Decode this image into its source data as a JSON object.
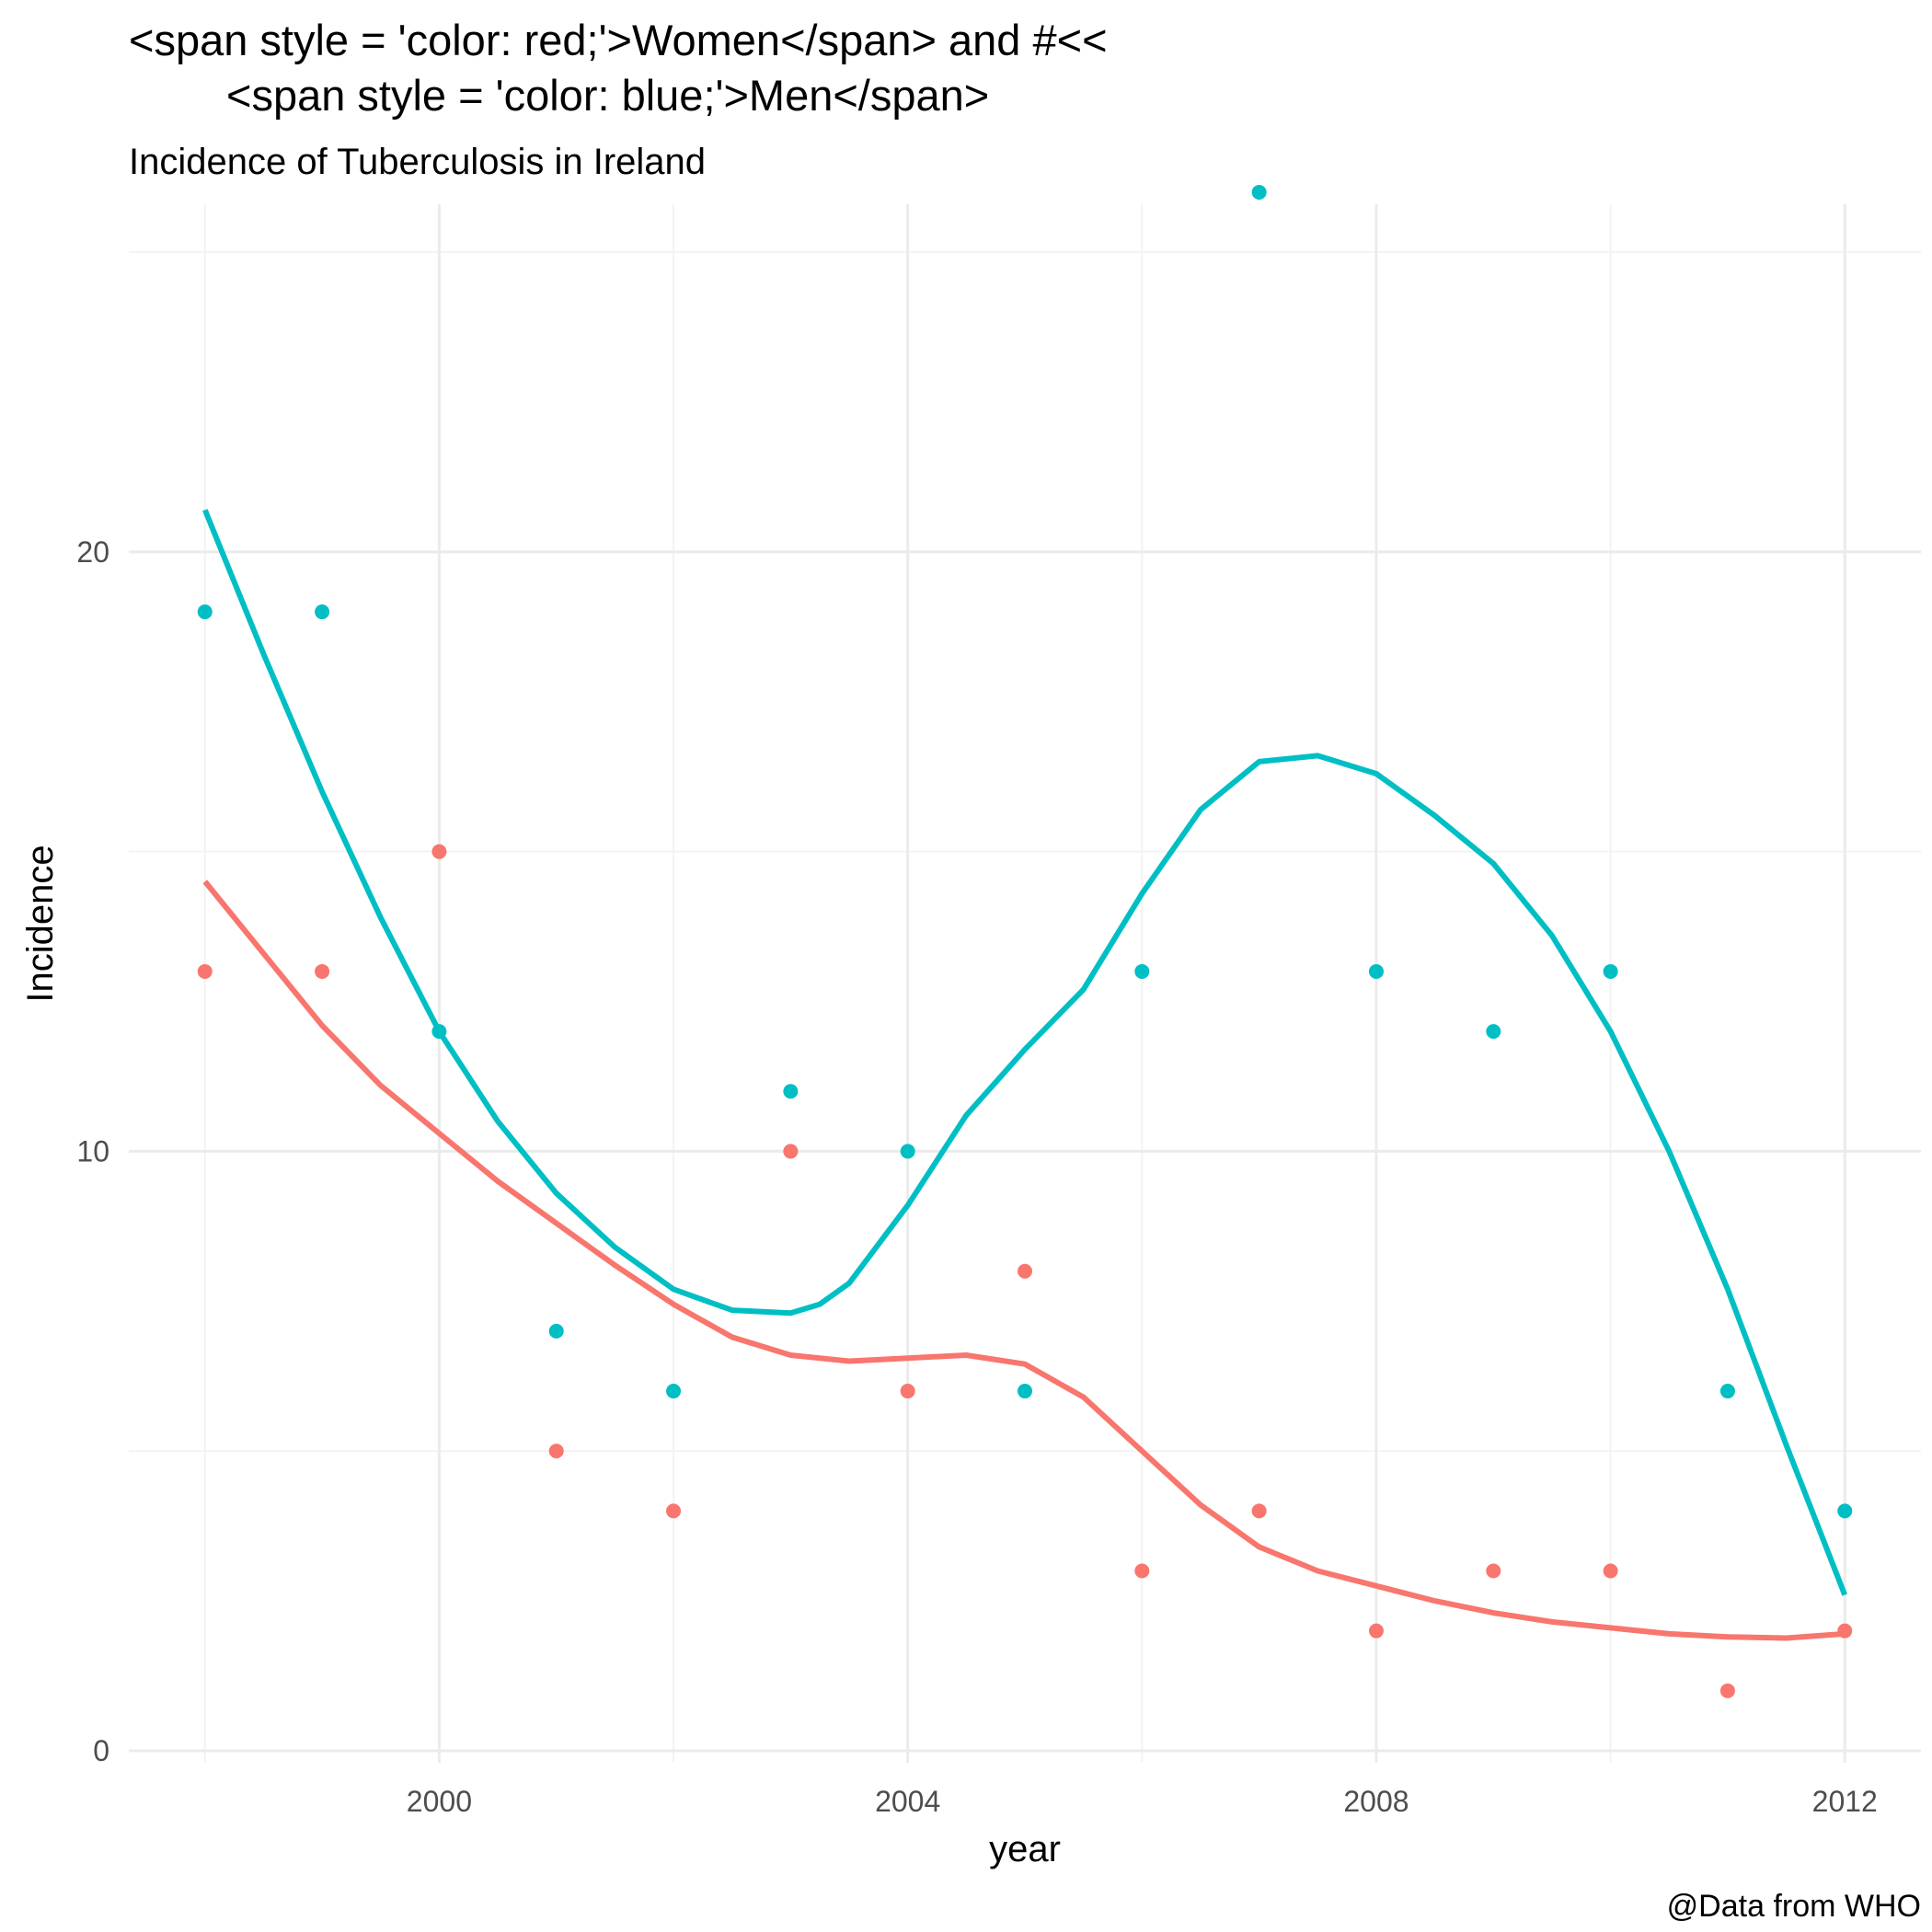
{
  "chart_data": {
    "type": "scatter",
    "title_line1": "<span style = 'color: red;'>Women</span> and  #<<",
    "title_line2": "<span style = 'color: blue;'>Men</span>",
    "subtitle": "Incidence of Tuberculosis in Ireland",
    "caption": "@Data from WHO",
    "xlabel": "year",
    "ylabel": "Incidence",
    "xlim": [
      1997.35,
      2012.65
    ],
    "ylim": [
      -0.2,
      25.8
    ],
    "x_ticks": [
      2000,
      2004,
      2008,
      2012
    ],
    "y_ticks": [
      0,
      10,
      20
    ],
    "grid": true,
    "legend": "none",
    "series": [
      {
        "color": "#F8766D",
        "x": [
          1998,
          1999,
          2000,
          2001,
          2002,
          2003,
          2004,
          2005,
          2006,
          2007,
          2008,
          2009,
          2010,
          2011,
          2012
        ],
        "values": [
          13,
          13,
          15,
          5,
          4,
          10,
          6,
          8,
          3,
          4,
          2,
          3,
          3,
          1,
          2
        ],
        "smooth": [
          [
            1998,
            14.5
          ],
          [
            1998.5,
            13.3
          ],
          [
            1999,
            12.1
          ],
          [
            1999.5,
            11.1
          ],
          [
            2000,
            10.3
          ],
          [
            2000.5,
            9.5
          ],
          [
            2001,
            8.8
          ],
          [
            2001.5,
            8.1
          ],
          [
            2002,
            7.45
          ],
          [
            2002.5,
            6.9
          ],
          [
            2003,
            6.6
          ],
          [
            2003.5,
            6.5
          ],
          [
            2004,
            6.55
          ],
          [
            2004.5,
            6.6
          ],
          [
            2005,
            6.45
          ],
          [
            2005.5,
            5.9
          ],
          [
            2006,
            5.0
          ],
          [
            2006.5,
            4.1
          ],
          [
            2007,
            3.4
          ],
          [
            2007.5,
            3.0
          ],
          [
            2008,
            2.75
          ],
          [
            2008.5,
            2.5
          ],
          [
            2009,
            2.3
          ],
          [
            2009.5,
            2.15
          ],
          [
            2010,
            2.05
          ],
          [
            2010.5,
            1.95
          ],
          [
            2011,
            1.9
          ],
          [
            2011.5,
            1.88
          ],
          [
            2012,
            1.95
          ]
        ]
      },
      {
        "color": "#00BFC4",
        "x": [
          1998,
          1999,
          2000,
          2001,
          2002,
          2003,
          2004,
          2005,
          2006,
          2007,
          2008,
          2009,
          2010,
          2011,
          2012
        ],
        "values": [
          19,
          19,
          12,
          7,
          6,
          11,
          10,
          6,
          13,
          26,
          13,
          12,
          13,
          6,
          4
        ],
        "smooth": [
          [
            1998,
            20.7
          ],
          [
            1998.5,
            18.3
          ],
          [
            1999,
            16.0
          ],
          [
            1999.5,
            13.9
          ],
          [
            2000,
            12.0
          ],
          [
            2000.5,
            10.5
          ],
          [
            2001,
            9.3
          ],
          [
            2001.5,
            8.4
          ],
          [
            2002,
            7.7
          ],
          [
            2002.5,
            7.35
          ],
          [
            2003,
            7.3
          ],
          [
            2003.25,
            7.45
          ],
          [
            2003.5,
            7.8
          ],
          [
            2004,
            9.1
          ],
          [
            2004.5,
            10.6
          ],
          [
            2005,
            11.7
          ],
          [
            2005.5,
            12.7
          ],
          [
            2006,
            14.3
          ],
          [
            2006.5,
            15.7
          ],
          [
            2007,
            16.5
          ],
          [
            2007.5,
            16.6
          ],
          [
            2008,
            16.3
          ],
          [
            2008.5,
            15.6
          ],
          [
            2009,
            14.8
          ],
          [
            2009.5,
            13.6
          ],
          [
            2010,
            12.0
          ],
          [
            2010.5,
            10.0
          ],
          [
            2011,
            7.7
          ],
          [
            2011.5,
            5.1
          ],
          [
            2012,
            2.6
          ]
        ]
      }
    ]
  }
}
